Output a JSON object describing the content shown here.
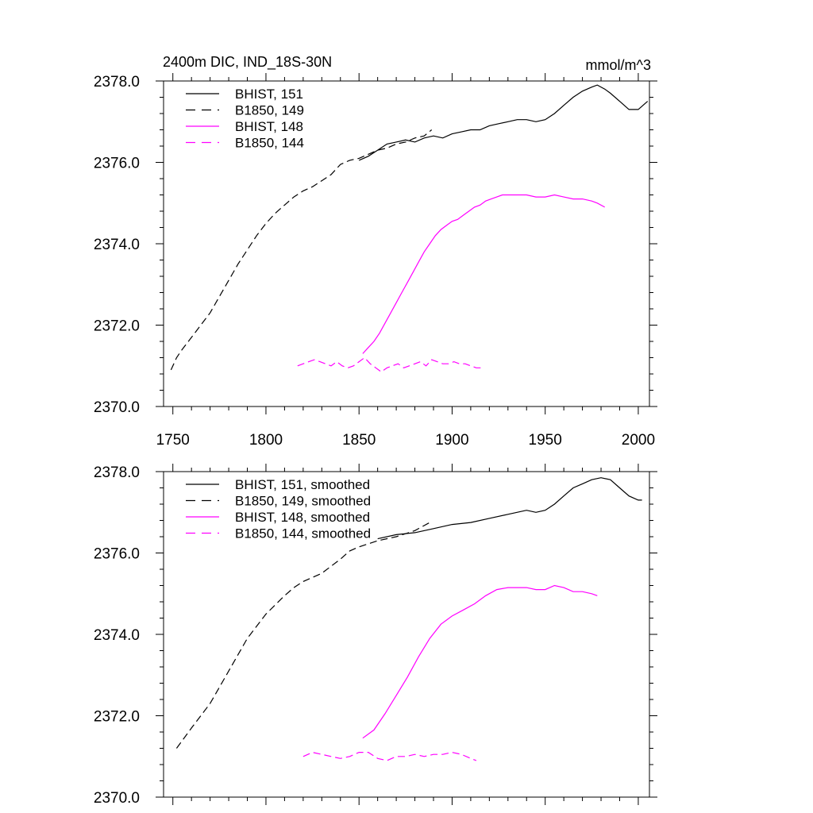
{
  "chart_data": [
    {
      "type": "line",
      "title": "2400m DIC, IND_18S-30N",
      "units": "mmol/m^3",
      "xlim": [
        1745,
        2006
      ],
      "ylim": [
        2370.0,
        2378.0
      ],
      "xticks": [
        1750,
        1800,
        1850,
        1900,
        1950,
        2000
      ],
      "xtick_labels": [
        "1750",
        "1800",
        "1850",
        "1900",
        "1950",
        "2000"
      ],
      "yticks": [
        2370.0,
        2372.0,
        2374.0,
        2376.0,
        2378.0
      ],
      "ytick_labels": [
        "2370.0",
        "2372.0",
        "2374.0",
        "2376.0",
        "2378.0"
      ],
      "legend_position": "top-left",
      "series": [
        {
          "name": "BHIST, 151",
          "color": "#000000",
          "dash": "solid",
          "x": [
            1850,
            1855,
            1860,
            1865,
            1870,
            1875,
            1880,
            1885,
            1890,
            1895,
            1900,
            1905,
            1910,
            1915,
            1920,
            1925,
            1930,
            1935,
            1940,
            1945,
            1950,
            1955,
            1960,
            1965,
            1970,
            1975,
            1978,
            1982,
            1985,
            1990,
            1995,
            2000,
            2005
          ],
          "y": [
            2376.05,
            2376.15,
            2376.3,
            2376.45,
            2376.5,
            2376.55,
            2376.5,
            2376.6,
            2376.65,
            2376.6,
            2376.7,
            2376.75,
            2376.8,
            2376.8,
            2376.9,
            2376.95,
            2377.0,
            2377.05,
            2377.05,
            2377.0,
            2377.05,
            2377.2,
            2377.4,
            2377.6,
            2377.75,
            2377.85,
            2377.9,
            2377.8,
            2377.7,
            2377.5,
            2377.3,
            2377.3,
            2377.5
          ]
        },
        {
          "name": "B1850, 149",
          "color": "#000000",
          "dash": "dashed",
          "x": [
            1749,
            1752,
            1755,
            1760,
            1765,
            1770,
            1775,
            1780,
            1785,
            1790,
            1795,
            1800,
            1805,
            1810,
            1815,
            1820,
            1825,
            1830,
            1835,
            1840,
            1845,
            1850,
            1855,
            1860,
            1865,
            1870,
            1875,
            1880,
            1885,
            1889
          ],
          "y": [
            2370.9,
            2371.2,
            2371.4,
            2371.7,
            2372.0,
            2372.3,
            2372.7,
            2373.1,
            2373.5,
            2373.85,
            2374.2,
            2374.5,
            2374.75,
            2374.95,
            2375.15,
            2375.3,
            2375.4,
            2375.55,
            2375.7,
            2375.95,
            2376.05,
            2376.1,
            2376.2,
            2376.3,
            2376.35,
            2376.45,
            2376.5,
            2376.6,
            2376.65,
            2376.8
          ]
        },
        {
          "name": "BHIST, 148",
          "color": "#ff00ff",
          "dash": "solid",
          "x": [
            1852,
            1855,
            1858,
            1861,
            1864,
            1867,
            1870,
            1873,
            1876,
            1879,
            1882,
            1885,
            1888,
            1891,
            1894,
            1897,
            1900,
            1903,
            1906,
            1909,
            1912,
            1915,
            1918,
            1921,
            1924,
            1927,
            1930,
            1935,
            1940,
            1945,
            1950,
            1955,
            1960,
            1965,
            1970,
            1975,
            1978,
            1982
          ],
          "y": [
            2371.3,
            2371.45,
            2371.6,
            2371.8,
            2372.05,
            2372.3,
            2372.55,
            2372.8,
            2373.05,
            2373.3,
            2373.55,
            2373.8,
            2374.0,
            2374.2,
            2374.35,
            2374.45,
            2374.55,
            2374.6,
            2374.7,
            2374.8,
            2374.9,
            2374.95,
            2375.05,
            2375.1,
            2375.15,
            2375.2,
            2375.2,
            2375.2,
            2375.2,
            2375.15,
            2375.15,
            2375.2,
            2375.15,
            2375.1,
            2375.1,
            2375.05,
            2375.0,
            2374.9
          ]
        },
        {
          "name": "B1850, 144",
          "color": "#ff00ff",
          "dash": "dashed",
          "x": [
            1817,
            1820,
            1823,
            1826,
            1829,
            1832,
            1835,
            1838,
            1841,
            1844,
            1847,
            1850,
            1853,
            1856,
            1859,
            1862,
            1865,
            1868,
            1871,
            1874,
            1877,
            1880,
            1883,
            1886,
            1889,
            1892,
            1895,
            1898,
            1901,
            1904,
            1907,
            1910,
            1913,
            1917
          ],
          "y": [
            2371.0,
            2371.05,
            2371.1,
            2371.15,
            2371.1,
            2371.05,
            2371.0,
            2371.1,
            2371.0,
            2370.95,
            2371.0,
            2371.1,
            2371.2,
            2371.05,
            2370.95,
            2370.85,
            2370.95,
            2371.0,
            2371.05,
            2370.95,
            2371.0,
            2371.05,
            2371.1,
            2371.0,
            2371.15,
            2371.1,
            2371.05,
            2371.05,
            2371.1,
            2371.05,
            2371.05,
            2371.0,
            2370.95,
            2370.95
          ]
        }
      ]
    },
    {
      "type": "line",
      "title": "",
      "xlim": [
        1745,
        2006
      ],
      "ylim": [
        2370.0,
        2378.0
      ],
      "xticks": [
        1750,
        1800,
        1850,
        1900,
        1950,
        2000
      ],
      "yticks": [
        2370.0,
        2372.0,
        2374.0,
        2376.0,
        2378.0
      ],
      "ytick_labels": [
        "2370.0",
        "2372.0",
        "2374.0",
        "2376.0",
        "2378.0"
      ],
      "legend_position": "top-left",
      "series": [
        {
          "name": "BHIST, 151, smoothed",
          "color": "#000000",
          "dash": "solid",
          "x": [
            1860,
            1870,
            1880,
            1890,
            1900,
            1910,
            1920,
            1930,
            1940,
            1945,
            1950,
            1955,
            1960,
            1965,
            1970,
            1975,
            1980,
            1985,
            1990,
            1995,
            2000,
            2002
          ],
          "y": [
            2376.35,
            2376.45,
            2376.5,
            2376.6,
            2376.7,
            2376.75,
            2376.85,
            2376.95,
            2377.05,
            2377.0,
            2377.05,
            2377.2,
            2377.4,
            2377.6,
            2377.7,
            2377.8,
            2377.85,
            2377.8,
            2377.6,
            2377.4,
            2377.3,
            2377.3
          ]
        },
        {
          "name": "B1850, 149, smoothed",
          "color": "#000000",
          "dash": "dashed",
          "x": [
            1752,
            1760,
            1770,
            1780,
            1790,
            1800,
            1810,
            1815,
            1820,
            1830,
            1840,
            1845,
            1850,
            1860,
            1870,
            1880,
            1888
          ],
          "y": [
            2371.2,
            2371.7,
            2372.3,
            2373.1,
            2373.9,
            2374.5,
            2374.95,
            2375.15,
            2375.3,
            2375.5,
            2375.85,
            2376.05,
            2376.15,
            2376.3,
            2376.4,
            2376.55,
            2376.75
          ]
        },
        {
          "name": "BHIST, 148, smoothed",
          "color": "#ff00ff",
          "dash": "solid",
          "x": [
            1852,
            1858,
            1864,
            1870,
            1876,
            1882,
            1888,
            1894,
            1900,
            1906,
            1912,
            1918,
            1924,
            1930,
            1940,
            1945,
            1950,
            1955,
            1960,
            1965,
            1970,
            1975,
            1978
          ],
          "y": [
            2371.45,
            2371.65,
            2372.05,
            2372.5,
            2372.95,
            2373.45,
            2373.9,
            2374.25,
            2374.45,
            2374.6,
            2374.75,
            2374.95,
            2375.1,
            2375.15,
            2375.15,
            2375.1,
            2375.1,
            2375.2,
            2375.15,
            2375.05,
            2375.05,
            2375.0,
            2374.95
          ]
        },
        {
          "name": "B1850, 144, smoothed",
          "color": "#ff00ff",
          "dash": "dashed",
          "x": [
            1820,
            1825,
            1830,
            1835,
            1840,
            1845,
            1850,
            1855,
            1860,
            1865,
            1870,
            1875,
            1880,
            1885,
            1890,
            1895,
            1900,
            1905,
            1910,
            1913
          ],
          "y": [
            2371.0,
            2371.1,
            2371.05,
            2371.0,
            2370.95,
            2371.0,
            2371.1,
            2371.1,
            2370.95,
            2370.9,
            2371.0,
            2371.0,
            2371.05,
            2371.0,
            2371.05,
            2371.05,
            2371.1,
            2371.05,
            2370.95,
            2370.9
          ]
        }
      ]
    }
  ]
}
